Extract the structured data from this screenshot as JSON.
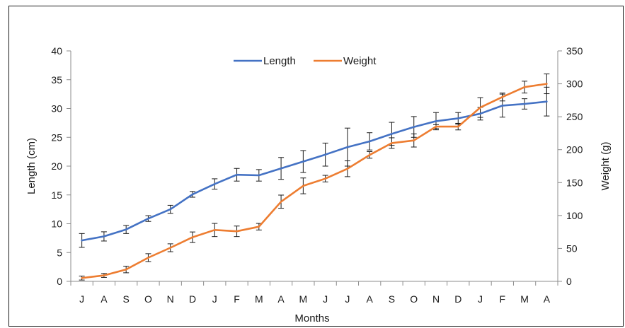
{
  "chart_data": {
    "type": "line",
    "title": "",
    "xlabel": "Months",
    "ylabel": "Length (cm)",
    "y2label": "Weight (g)",
    "categories": [
      "J",
      "A",
      "S",
      "O",
      "N",
      "D",
      "J",
      "F",
      "M",
      "A",
      "M",
      "J",
      "J",
      "A",
      "S",
      "O",
      "N",
      "D",
      "J",
      "F",
      "M",
      "A"
    ],
    "ylim": [
      0,
      40
    ],
    "yticks": [
      0,
      5,
      10,
      15,
      20,
      25,
      30,
      35,
      40
    ],
    "y2lim": [
      0,
      350
    ],
    "y2ticks": [
      0,
      50,
      100,
      150,
      200,
      250,
      300,
      350
    ],
    "grid": false,
    "legend": "top",
    "series": [
      {
        "name": "Length",
        "axis": "left",
        "color": "#4472c4",
        "values": [
          7.1,
          7.8,
          9.0,
          10.9,
          12.5,
          15.1,
          16.9,
          18.5,
          18.4,
          19.6,
          20.8,
          22.0,
          23.3,
          24.3,
          25.6,
          26.8,
          27.8,
          28.3,
          29.1,
          30.5,
          30.8,
          31.2
        ],
        "errors": [
          1.2,
          0.8,
          0.7,
          0.5,
          0.7,
          0.5,
          0.9,
          1.1,
          1.0,
          1.9,
          1.9,
          2.0,
          3.3,
          1.5,
          2.0,
          1.8,
          1.5,
          1.0,
          1.1,
          2.0,
          0.9,
          2.5
        ]
      },
      {
        "name": "Weight",
        "axis": "right",
        "color": "#ed7d31",
        "values": [
          5,
          9,
          18,
          36,
          51,
          67,
          78,
          76,
          83,
          121,
          145,
          156,
          171,
          192,
          210,
          214,
          235,
          235,
          264,
          280,
          295,
          300
        ],
        "errors": [
          3,
          3,
          5,
          6,
          6,
          8,
          10,
          8,
          5,
          10,
          12,
          5,
          12,
          5,
          8,
          10,
          3,
          5,
          15,
          6,
          9,
          15
        ]
      }
    ]
  }
}
